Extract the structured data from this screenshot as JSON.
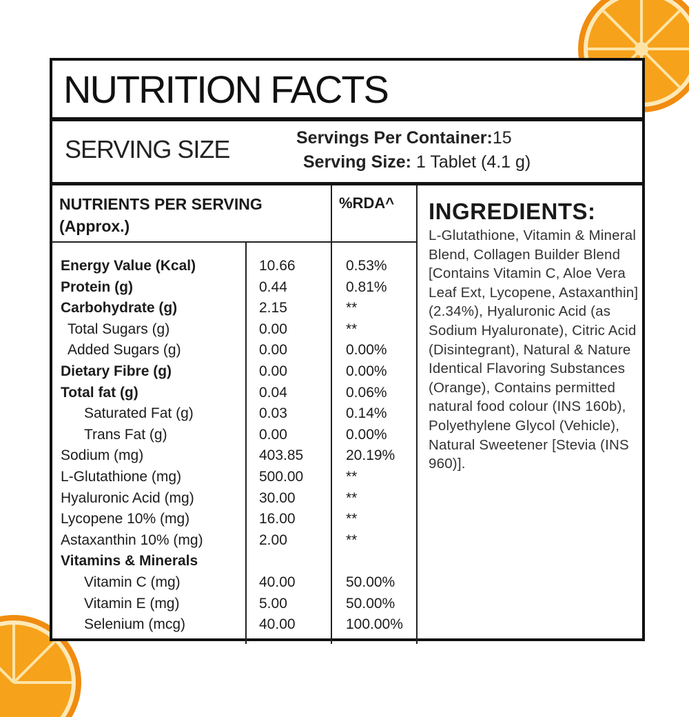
{
  "title": "NUTRITION FACTS",
  "serving": {
    "section_label": "SERVING SIZE",
    "per_container_label": "Servings Per Container:",
    "per_container_value": "15",
    "size_label": "Serving Size:",
    "size_value": "1 Tablet (4.1  g)"
  },
  "nutrients": {
    "header_line1": "NUTRIENTS PER SERVING",
    "header_line2": "(Approx.)",
    "rda_header": "%RDA^",
    "rows": [
      {
        "name": "Energy Value (Kcal)",
        "value": "10.66",
        "rda": "0.53%"
      },
      {
        "name": "Protein (g)",
        "value": "0.44",
        "rda": "0.81%"
      },
      {
        "name": "Carbohydrate (g)",
        "value": "2.15",
        "rda": "**"
      },
      {
        "name": "Total Sugars (g)",
        "value": "0.00",
        "rda": "**"
      },
      {
        "name": "Added Sugars (g)",
        "value": "0.00",
        "rda": "0.00%"
      },
      {
        "name": "Dietary Fibre (g)",
        "value": "0.00",
        "rda": "0.00%"
      },
      {
        "name": "Total fat (g)",
        "value": "0.04",
        "rda": "0.06%"
      },
      {
        "name": "Saturated Fat (g)",
        "value": "0.03",
        "rda": "0.14%"
      },
      {
        "name": "Trans Fat (g)",
        "value": "0.00",
        "rda": "0.00%"
      },
      {
        "name": "Sodium (mg)",
        "value": "403.85",
        "rda": "20.19%"
      },
      {
        "name": "L-Glutathione (mg)",
        "value": "500.00",
        "rda": "**"
      },
      {
        "name": "Hyaluronic Acid (mg)",
        "value": "30.00",
        "rda": "**"
      },
      {
        "name": "Lycopene 10% (mg)",
        "value": "16.00",
        "rda": "**"
      },
      {
        "name": "Astaxanthin 10% (mg)",
        "value": "2.00",
        "rda": "**"
      },
      {
        "name": "Vitamins & Minerals",
        "value": "",
        "rda": ""
      },
      {
        "name": "Vitamin C (mg)",
        "value": "40.00",
        "rda": "50.00%"
      },
      {
        "name": "Vitamin E (mg)",
        "value": "5.00",
        "rda": "50.00%"
      },
      {
        "name": "Selenium (mcg)",
        "value": "40.00",
        "rda": "100.00%"
      }
    ]
  },
  "ingredients": {
    "title": "INGREDIENTS:",
    "text": "L-Glutathione, Vitamin & Mineral Blend, Collagen Builder Blend [Contains Vitamin C, Aloe Vera Leaf Ext, Lycopene, Astaxanthin] (2.34%), Hyaluronic Acid (as Sodium Hyaluronate), Citric Acid (Disintegrant), Natural & Nature Identical Flavoring Substances (Orange), Contains permitted natural food colour (INS 160b), Polyethylene Glycol (Vehicle), Natural Sweetener [Stevia (INS 960)]."
  },
  "colors": {
    "border": "#111111",
    "orange_flesh": "#f7a21b",
    "orange_peel": "#f08c10",
    "pith": "#fde9b8"
  }
}
